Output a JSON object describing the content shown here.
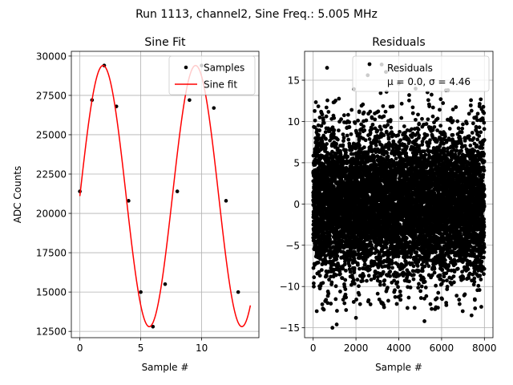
{
  "figure": {
    "suptitle": "Run 1113, channel2, Sine Freq.: 5.005 MHz"
  },
  "chart_data": [
    {
      "type": "line",
      "title": "Sine Fit",
      "xlabel": "Sample #",
      "ylabel": "ADC Counts",
      "xlim": [
        -0.7,
        14.7
      ],
      "ylim": [
        12100,
        30300
      ],
      "grid": true,
      "legend": "top-right",
      "x_ticks": [
        0,
        5,
        10
      ],
      "x_tick_labels": [
        "0",
        "5",
        "10"
      ],
      "y_ticks": [
        12500,
        15000,
        17500,
        20000,
        22500,
        25000,
        27500,
        30000
      ],
      "y_tick_labels": [
        "12500",
        "15000",
        "17500",
        "20000",
        "22500",
        "25000",
        "27500",
        "30000"
      ],
      "series": [
        {
          "name": "Samples",
          "kind": "scatter",
          "color": "#000000",
          "x": [
            0,
            1,
            2,
            3,
            4,
            5,
            6,
            7,
            8,
            9,
            10,
            11,
            12,
            13
          ],
          "y": [
            21400,
            27200,
            29400,
            26800,
            20800,
            15000,
            12800,
            15500,
            21400,
            27200,
            29400,
            26700,
            20800,
            15000
          ]
        },
        {
          "name": "Sine fit",
          "kind": "line",
          "color": "#ff0000",
          "model": {
            "offset": 21100,
            "amplitude": 8300,
            "period": 7.6,
            "phase": 0.0,
            "x_start": 0,
            "x_end": 14
          }
        }
      ]
    },
    {
      "type": "scatter",
      "title": "Residuals",
      "xlabel": "Sample #",
      "ylabel": "",
      "xlim": [
        -400,
        8400
      ],
      "ylim": [
        -16.2,
        18.5
      ],
      "grid": true,
      "legend": "top-right",
      "legend_lines": [
        "Residuals",
        "μ = 0.0, σ = 4.46"
      ],
      "x_ticks": [
        0,
        2000,
        4000,
        6000,
        8000
      ],
      "x_tick_labels": [
        "0",
        "2000",
        "4000",
        "6000",
        "8000"
      ],
      "y_ticks": [
        -15,
        -10,
        -5,
        0,
        5,
        10,
        15
      ],
      "y_tick_labels": [
        "−15",
        "−10",
        "−5",
        "0",
        "5",
        "10",
        "15"
      ],
      "series": [
        {
          "name": "Residuals",
          "color": "#000000",
          "distribution": {
            "mean": 0.0,
            "std": 4.46,
            "count": 8000,
            "x_start": 0,
            "x_end": 8000
          },
          "x": [
            650,
            900,
            2550,
            3200,
            3400,
            1100,
            5200,
            7400,
            2000,
            6300,
            4000,
            500
          ],
          "y": [
            16.5,
            -15.0,
            15.6,
            16.9,
            16.0,
            -14.6,
            -14.2,
            -13.5,
            -13.8,
            13.8,
            14.6,
            -12.8
          ]
        }
      ]
    }
  ]
}
